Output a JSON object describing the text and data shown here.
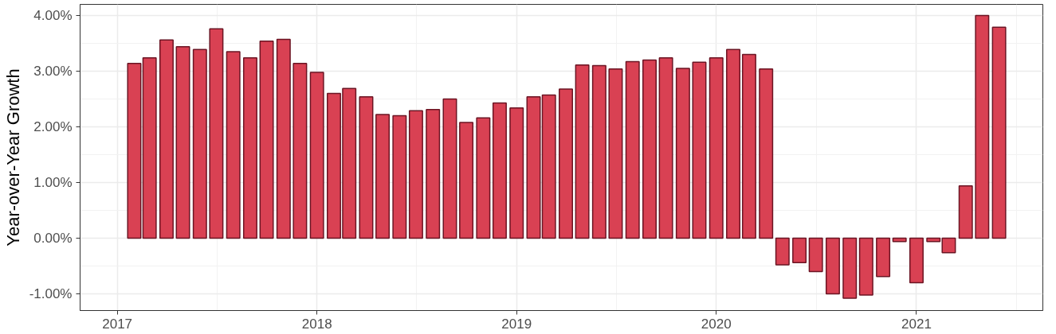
{
  "chart_data": {
    "type": "bar",
    "ylabel": "Year-over-Year Growth",
    "x": [
      "2017-02",
      "2017-03",
      "2017-04",
      "2017-05",
      "2017-06",
      "2017-07",
      "2017-08",
      "2017-09",
      "2017-10",
      "2017-11",
      "2017-12",
      "2018-01",
      "2018-02",
      "2018-03",
      "2018-04",
      "2018-05",
      "2018-06",
      "2018-07",
      "2018-08",
      "2018-09",
      "2018-10",
      "2018-11",
      "2018-12",
      "2019-01",
      "2019-02",
      "2019-03",
      "2019-04",
      "2019-05",
      "2019-06",
      "2019-07",
      "2019-08",
      "2019-09",
      "2019-10",
      "2019-11",
      "2019-12",
      "2020-01",
      "2020-02",
      "2020-03",
      "2020-04",
      "2020-05",
      "2020-06",
      "2020-07",
      "2020-08",
      "2020-09",
      "2020-10",
      "2020-11",
      "2020-12",
      "2021-01",
      "2021-02",
      "2021-03",
      "2021-04",
      "2021-05",
      "2021-06"
    ],
    "values": [
      3.14,
      3.24,
      3.56,
      3.44,
      3.39,
      3.76,
      3.35,
      3.24,
      3.54,
      3.57,
      3.14,
      2.98,
      2.6,
      2.69,
      2.54,
      2.22,
      2.2,
      2.29,
      2.31,
      2.5,
      2.08,
      2.16,
      2.43,
      2.34,
      2.54,
      2.57,
      2.68,
      3.11,
      3.1,
      3.04,
      3.17,
      3.2,
      3.24,
      3.05,
      3.16,
      3.24,
      3.39,
      3.3,
      3.04,
      -0.48,
      -0.44,
      -0.6,
      -1.0,
      -1.08,
      -1.02,
      -0.69,
      -0.06,
      -0.8,
      -0.06,
      -0.26,
      0.94,
      4.0,
      3.79
    ],
    "color": "#d94153",
    "xlim": [
      "2016-10-25",
      "2021-08-20"
    ],
    "xticks": [
      "2017",
      "2018",
      "2019",
      "2020",
      "2021"
    ],
    "ylim": [
      -1.3,
      4.2
    ],
    "yticks": [
      {
        "value": -1,
        "label": "-1.00%"
      },
      {
        "value": 0,
        "label": "0.00%"
      },
      {
        "value": 1,
        "label": "1.00%"
      },
      {
        "value": 2,
        "label": "2.00%"
      },
      {
        "value": 3,
        "label": "3.00%"
      },
      {
        "value": 4,
        "label": "4.00%"
      }
    ],
    "grid": true
  }
}
